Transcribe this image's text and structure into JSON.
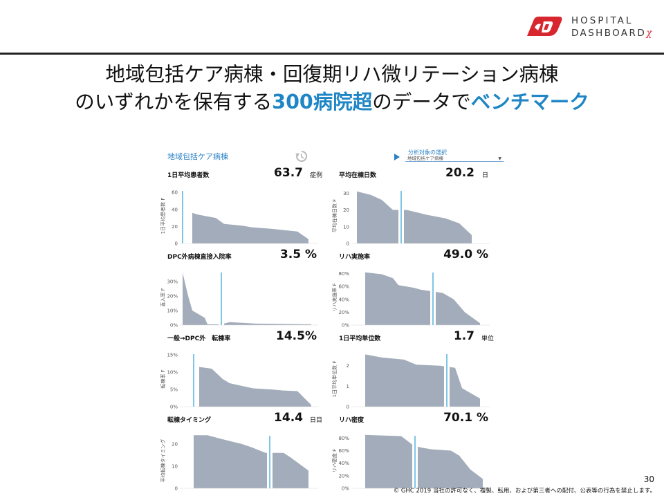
{
  "logo": {
    "line1": "HOSPITAL",
    "line2": "DASHBOARD",
    "suffix": "χ",
    "brand_color": "#d8262e"
  },
  "title": {
    "line1": "地域包括ケア病棟・回復期リハ微リテーション病棟",
    "line2_parts": [
      {
        "text": "のいずれかを保有する",
        "highlight": false
      },
      {
        "text": "300病院超",
        "highlight": true
      },
      {
        "text": "のデータで",
        "highlight": false
      },
      {
        "text": "ベンチマーク",
        "highlight": true
      }
    ],
    "highlight_color": "#1f86c6"
  },
  "dashboard": {
    "header": "地域包括ケア病棟",
    "refresh_icon": "refresh-icon",
    "selector": {
      "label": "分析対象の選択",
      "value": "地域包括ケア病棟"
    },
    "fill_color": "#a3acba",
    "marker_color": "#2b9ed6",
    "panels": [
      {
        "title": "1日平均患者数",
        "value": "63.7",
        "unit": "症例",
        "ylabel": "1日平均患者数 F",
        "yticks": [
          "60",
          "40",
          "20",
          "0"
        ],
        "yvals": [
          60,
          40,
          20,
          0
        ],
        "ymax": 65,
        "markerPos": 0.02,
        "profile": [
          [
            0.09,
            36
          ],
          [
            0.13,
            34
          ],
          [
            0.26,
            30
          ],
          [
            0.32,
            23
          ],
          [
            0.45,
            21
          ],
          [
            0.52,
            19
          ],
          [
            0.68,
            17
          ],
          [
            0.85,
            14
          ],
          [
            0.93,
            5
          ]
        ]
      },
      {
        "title": "平均在棟日数",
        "value": "20.2",
        "unit": "日",
        "ylabel": "平均在棟日数 F",
        "yticks": [
          "30",
          "20",
          "10",
          "0"
        ],
        "yvals": [
          30,
          20,
          10,
          0
        ],
        "ymax": 33,
        "markerPos": 0.36,
        "profile": [
          [
            0.04,
            31
          ],
          [
            0.14,
            29
          ],
          [
            0.22,
            26
          ],
          [
            0.3,
            20
          ],
          [
            0.4,
            20
          ],
          [
            0.55,
            17
          ],
          [
            0.68,
            15
          ],
          [
            0.78,
            12
          ],
          [
            0.87,
            5
          ]
        ]
      },
      {
        "title": "DPC外病棟直接入院率",
        "value": "3.5 %",
        "unit": "",
        "ylabel": "直入率 F",
        "yticks": [
          "30%",
          "20%",
          "10%",
          "0%"
        ],
        "yvals": [
          30,
          20,
          10,
          0
        ],
        "ymax": 38,
        "markerPos": 0.3,
        "profile": [
          [
            0.02,
            36
          ],
          [
            0.06,
            20
          ],
          [
            0.09,
            10
          ],
          [
            0.18,
            5
          ],
          [
            0.2,
            0.5
          ],
          [
            0.3,
            0.5
          ],
          [
            0.36,
            2
          ],
          [
            0.55,
            1
          ],
          [
            0.95,
            0.5
          ]
        ]
      },
      {
        "title": "リハ実施率",
        "value": "49.0 %",
        "unit": "",
        "ylabel": "リハ実施率 F",
        "yticks": [
          "80%",
          "60%",
          "40%",
          "20%",
          "0%"
        ],
        "yvals": [
          80,
          60,
          40,
          20,
          0
        ],
        "ymax": 86,
        "markerPos": 0.59,
        "profile": [
          [
            0.1,
            82
          ],
          [
            0.22,
            79
          ],
          [
            0.3,
            73
          ],
          [
            0.34,
            62
          ],
          [
            0.45,
            58
          ],
          [
            0.5,
            55
          ],
          [
            0.66,
            50
          ],
          [
            0.74,
            40
          ],
          [
            0.82,
            20
          ],
          [
            0.93,
            3
          ]
        ]
      },
      {
        "title": "一般→DPC外　転棟率",
        "value": "14.5%",
        "unit": "",
        "ylabel": "転棟率 F",
        "yticks": [
          "15%",
          "10%",
          "5%",
          "0%"
        ],
        "yvals": [
          15,
          10,
          5,
          0
        ],
        "ymax": 16,
        "markerPos": 0.1,
        "profile": [
          [
            0.14,
            11.5
          ],
          [
            0.23,
            11
          ],
          [
            0.31,
            8
          ],
          [
            0.36,
            6.8
          ],
          [
            0.45,
            6
          ],
          [
            0.53,
            5.3
          ],
          [
            0.66,
            5
          ],
          [
            0.74,
            4.7
          ],
          [
            0.85,
            4.5
          ],
          [
            0.95,
            0.5
          ]
        ]
      },
      {
        "title": "1日平均単位数",
        "value": "1.7",
        "unit": "単位",
        "ylabel": "1日平均単位数 F",
        "yticks": [
          "2",
          "1",
          "0"
        ],
        "yvals": [
          2,
          1,
          0
        ],
        "ymax": 2.7,
        "markerPos": 0.69,
        "profile": [
          [
            0.1,
            2.55
          ],
          [
            0.22,
            2.4
          ],
          [
            0.38,
            2.3
          ],
          [
            0.47,
            2.05
          ],
          [
            0.64,
            2
          ],
          [
            0.75,
            1.9
          ],
          [
            0.8,
            0.9
          ],
          [
            0.93,
            0.4
          ]
        ]
      },
      {
        "title": "転棟タイミング",
        "value": "14.4",
        "unit": "日目",
        "ylabel": "平均転棟タイミング",
        "yticks": [
          "20",
          "10",
          "0"
        ],
        "yvals": [
          20,
          10,
          0
        ],
        "ymax": 25,
        "markerPos": 0.65,
        "profile": [
          [
            0.1,
            24
          ],
          [
            0.2,
            24
          ],
          [
            0.32,
            22
          ],
          [
            0.45,
            20
          ],
          [
            0.52,
            18.5
          ],
          [
            0.62,
            16
          ],
          [
            0.75,
            16
          ],
          [
            0.8,
            14
          ],
          [
            0.93,
            8
          ]
        ]
      },
      {
        "title": "リハ密度",
        "value": "70.1 %",
        "unit": "",
        "ylabel": "リハ密度 F",
        "yticks": [
          "80%",
          "60%",
          "40%",
          "20%",
          "0%"
        ],
        "yvals": [
          80,
          60,
          40,
          20,
          0
        ],
        "ymax": 88,
        "markerPos": 0.46,
        "profile": [
          [
            0.1,
            85
          ],
          [
            0.22,
            84
          ],
          [
            0.36,
            83
          ],
          [
            0.45,
            68
          ],
          [
            0.5,
            65
          ],
          [
            0.58,
            62
          ],
          [
            0.72,
            60
          ],
          [
            0.78,
            52
          ],
          [
            0.86,
            30
          ],
          [
            0.95,
            15
          ]
        ]
      }
    ]
  },
  "footer": {
    "page_number": "30",
    "copyright": "© GHC 2019 当社の許可なく、複製、転用、および第三者への配付、公表等の行為を禁止します。"
  }
}
